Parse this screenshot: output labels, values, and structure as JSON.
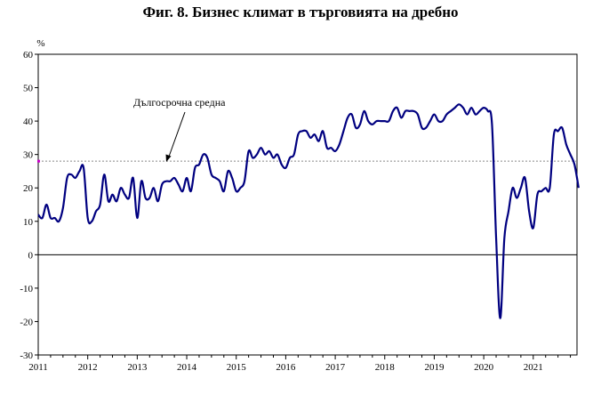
{
  "chart_data": {
    "type": "line",
    "title": "Фиг. 8. Бизнес климат в търговията на дребно",
    "ylabel": "%",
    "xlabel": "",
    "ylim": [
      -30,
      60
    ],
    "yticks": [
      60,
      50,
      40,
      30,
      20,
      10,
      0,
      -10,
      -20,
      -30
    ],
    "xticks": [
      "2011",
      "2012",
      "2013",
      "2014",
      "2015",
      "2016",
      "2017",
      "2018",
      "2019",
      "2020",
      "2021"
    ],
    "x_start": "2011-01",
    "grid": false,
    "annotation": "Дългосрочна средна",
    "series": [
      {
        "color": "#000080",
        "x": [
          "2011-01",
          "2011-02",
          "2011-03",
          "2011-04",
          "2011-05",
          "2011-06",
          "2011-07",
          "2011-08",
          "2011-09",
          "2011-10",
          "2011-11",
          "2011-12",
          "2012-01",
          "2012-02",
          "2012-03",
          "2012-04",
          "2012-05",
          "2012-06",
          "2012-07",
          "2012-08",
          "2012-09",
          "2012-10",
          "2012-11",
          "2012-12",
          "2013-01",
          "2013-02",
          "2013-03",
          "2013-04",
          "2013-05",
          "2013-06",
          "2013-07",
          "2013-08",
          "2013-09",
          "2013-10",
          "2013-11",
          "2013-12",
          "2014-01",
          "2014-02",
          "2014-03",
          "2014-04",
          "2014-05",
          "2014-06",
          "2014-07",
          "2014-08",
          "2014-09",
          "2014-10",
          "2014-11",
          "2014-12",
          "2015-01",
          "2015-02",
          "2015-03",
          "2015-04",
          "2015-05",
          "2015-06",
          "2015-07",
          "2015-08",
          "2015-09",
          "2015-10",
          "2015-11",
          "2015-12",
          "2016-01",
          "2016-02",
          "2016-03",
          "2016-04",
          "2016-05",
          "2016-06",
          "2016-07",
          "2016-08",
          "2016-09",
          "2016-10",
          "2016-11",
          "2016-12",
          "2017-01",
          "2017-02",
          "2017-03",
          "2017-04",
          "2017-05",
          "2017-06",
          "2017-07",
          "2017-08",
          "2017-09",
          "2017-10",
          "2017-11",
          "2017-12",
          "2018-01",
          "2018-02",
          "2018-03",
          "2018-04",
          "2018-05",
          "2018-06",
          "2018-07",
          "2018-08",
          "2018-09",
          "2018-10",
          "2018-11",
          "2018-12",
          "2019-01",
          "2019-02",
          "2019-03",
          "2019-04",
          "2019-05",
          "2019-06",
          "2019-07",
          "2019-08",
          "2019-09",
          "2019-10",
          "2019-11",
          "2019-12",
          "2020-01",
          "2020-02",
          "2020-03",
          "2020-04",
          "2020-05",
          "2020-06",
          "2020-07",
          "2020-08",
          "2020-09",
          "2020-10",
          "2020-11",
          "2020-12",
          "2021-01",
          "2021-02",
          "2021-03",
          "2021-04",
          "2021-05",
          "2021-06",
          "2021-07",
          "2021-08",
          "2021-09",
          "2021-10",
          "2021-11",
          "2021-12"
        ],
        "values": [
          12,
          11,
          15,
          11,
          11,
          10,
          14,
          23,
          24,
          23,
          25,
          26,
          11,
          10,
          13,
          15,
          24,
          16,
          18,
          16,
          20,
          18,
          17,
          23,
          11,
          22,
          17,
          17,
          20,
          16,
          21,
          22,
          22,
          23,
          21,
          19,
          23,
          19,
          26,
          27,
          30,
          29,
          24,
          23,
          22,
          19,
          25,
          23,
          19,
          20,
          22,
          31,
          29,
          30,
          32,
          30,
          31,
          29,
          30,
          27,
          26,
          29,
          30,
          36,
          37,
          37,
          35,
          36,
          34,
          37,
          32,
          32,
          31,
          33,
          37,
          41,
          42,
          38,
          39,
          43,
          40,
          39,
          40,
          40,
          40,
          40,
          43,
          44,
          41,
          43,
          43,
          43,
          42,
          38,
          38,
          40,
          42,
          40,
          40,
          42,
          43,
          44,
          45,
          44,
          42,
          44,
          42,
          43,
          44,
          43,
          39,
          5,
          -19,
          5,
          13,
          20,
          17,
          20,
          23,
          13,
          8,
          18,
          19,
          20,
          20,
          36,
          37,
          38,
          33,
          30,
          27,
          20
        ]
      }
    ],
    "reference_lines": [
      {
        "value": 0,
        "style": "solid",
        "color": "#000000"
      },
      {
        "value": 28,
        "style": "dashed",
        "color": "#888888",
        "label": "Дългосрочна средна"
      }
    ]
  }
}
